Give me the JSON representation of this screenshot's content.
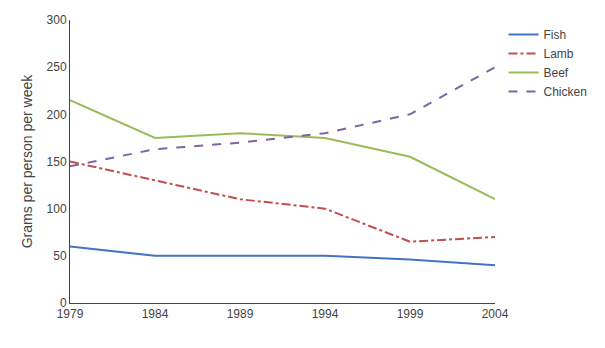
{
  "chart_data": {
    "type": "line",
    "ylabel": "Grams per person per week",
    "x": [
      1979,
      1984,
      1989,
      1994,
      1999,
      2004
    ],
    "series": [
      {
        "name": "Fish",
        "color": "#4472C4",
        "line_style": "solid",
        "values": [
          60,
          50,
          50,
          50,
          46,
          40
        ]
      },
      {
        "name": "Lamb",
        "color": "#C0504D",
        "line_style": "dashdot",
        "values": [
          150,
          130,
          110,
          100,
          65,
          70
        ]
      },
      {
        "name": "Beef",
        "color": "#9BBB59",
        "line_style": "solid",
        "values": [
          215,
          175,
          180,
          175,
          155,
          110
        ]
      },
      {
        "name": "Chicken",
        "color": "#8064A2",
        "line_style": "dash",
        "values": [
          145,
          163,
          170,
          180,
          200,
          250
        ]
      }
    ],
    "xlim": [
      1979,
      2004
    ],
    "xticks": [
      1979,
      1984,
      1989,
      1994,
      1999,
      2004
    ],
    "ylim": [
      0,
      300
    ],
    "yticks": [
      0,
      50,
      100,
      150,
      200,
      250,
      300
    ],
    "grid": false,
    "legend": "right"
  }
}
